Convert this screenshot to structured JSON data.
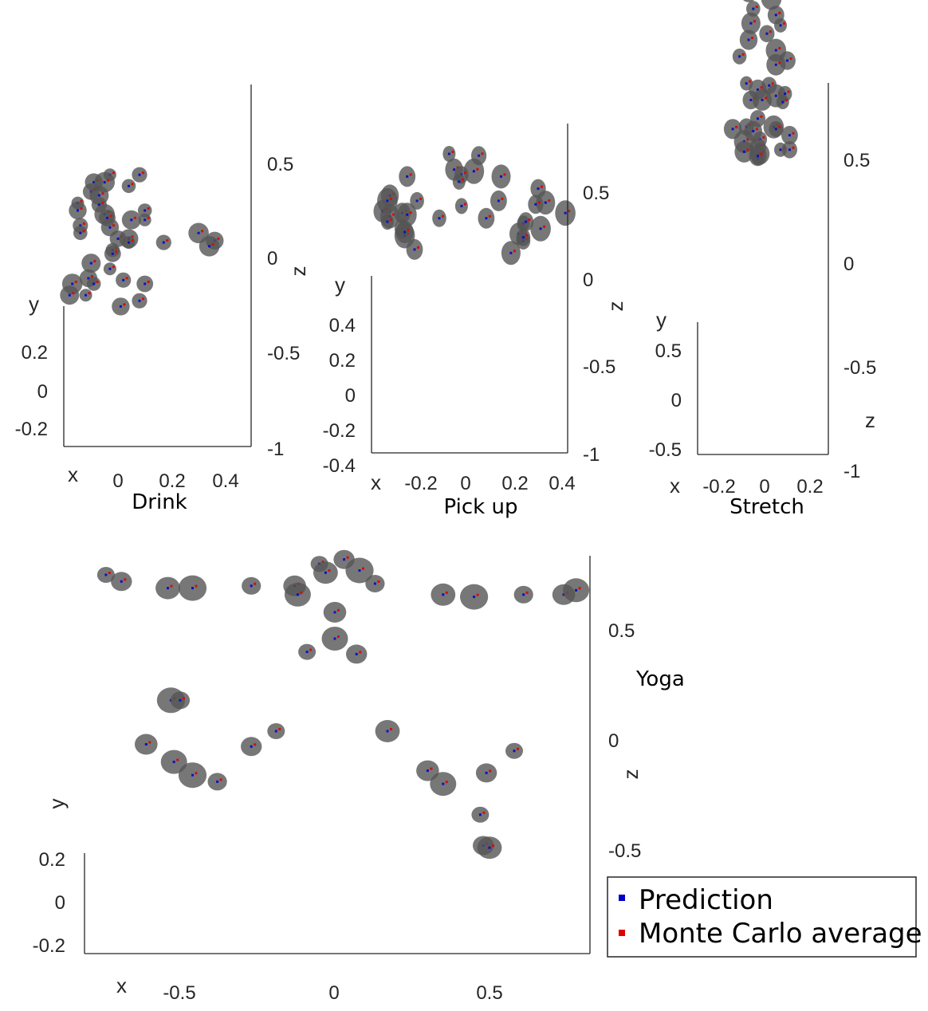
{
  "chart_data": [
    {
      "type": "scatter",
      "title": "Drink",
      "xlabel": "x",
      "ylabel": "y",
      "zlabel": "z",
      "xticks": [
        "0",
        "0.2",
        "0.4"
      ],
      "yticks": [
        "0.2",
        "0",
        "-0.2"
      ],
      "zticks": [
        "0.5",
        "0",
        "-0.5",
        "-1"
      ],
      "series": [
        {
          "name": "Prediction"
        },
        {
          "name": "Monte Carlo average"
        }
      ],
      "points": [
        [
          -0.03,
          0.44
        ],
        [
          0.08,
          0.44
        ],
        [
          -0.09,
          0.4
        ],
        [
          -0.05,
          0.4
        ],
        [
          0.04,
          0.38
        ],
        [
          -0.1,
          0.35
        ],
        [
          -0.07,
          0.33
        ],
        [
          -0.15,
          0.29
        ],
        [
          -0.07,
          0.28
        ],
        [
          -0.15,
          0.25
        ],
        [
          -0.05,
          0.23
        ],
        [
          0.1,
          0.25
        ],
        [
          -0.04,
          0.21
        ],
        [
          0.05,
          0.2
        ],
        [
          0.1,
          0.2
        ],
        [
          -0.14,
          0.17
        ],
        [
          -0.03,
          0.16
        ],
        [
          0.3,
          0.13
        ],
        [
          -0.14,
          0.13
        ],
        [
          0.0,
          0.1
        ],
        [
          0.04,
          0.1
        ],
        [
          0.04,
          0.08
        ],
        [
          0.17,
          0.08
        ],
        [
          0.36,
          0.09
        ],
        [
          0.34,
          0.06
        ],
        [
          -0.02,
          0.04
        ],
        [
          -0.02,
          0.02
        ],
        [
          -0.1,
          -0.03
        ],
        [
          -0.03,
          -0.06
        ],
        [
          0.02,
          -0.12
        ],
        [
          -0.11,
          -0.11
        ],
        [
          -0.17,
          -0.14
        ],
        [
          -0.09,
          -0.14
        ],
        [
          0.1,
          -0.14
        ],
        [
          -0.18,
          -0.2
        ],
        [
          -0.12,
          -0.2
        ],
        [
          0.08,
          -0.23
        ],
        [
          0.01,
          -0.26
        ]
      ]
    },
    {
      "type": "scatter",
      "title": "Pick up",
      "xlabel": "x",
      "ylabel": "y",
      "zlabel": "z",
      "xticks": [
        "-0.2",
        "0",
        "0.2",
        "0.4"
      ],
      "yticks": [
        "0.4",
        "0.2",
        "0",
        "-0.2",
        "-0.4"
      ],
      "zticks": [
        "0.5",
        "0",
        "-0.5",
        "-1"
      ],
      "series": [
        {
          "name": "Prediction"
        },
        {
          "name": "Monte Carlo average"
        }
      ],
      "points": [
        [
          -0.06,
          0.72
        ],
        [
          0.06,
          0.71
        ],
        [
          -0.04,
          0.63
        ],
        [
          0.04,
          0.62
        ],
        [
          -0.01,
          0.6
        ],
        [
          -0.23,
          0.59
        ],
        [
          0.15,
          0.59
        ],
        [
          -0.02,
          0.56
        ],
        [
          0.3,
          0.52
        ],
        [
          -0.3,
          0.48
        ],
        [
          -0.31,
          0.45
        ],
        [
          -0.19,
          0.45
        ],
        [
          0.14,
          0.45
        ],
        [
          0.33,
          0.44
        ],
        [
          -0.01,
          0.42
        ],
        [
          0.29,
          0.43
        ],
        [
          -0.33,
          0.39
        ],
        [
          0.41,
          0.38
        ],
        [
          -0.1,
          0.35
        ],
        [
          0.09,
          0.35
        ],
        [
          -0.3,
          0.36
        ],
        [
          0.24,
          0.32
        ],
        [
          -0.25,
          0.29
        ],
        [
          0.22,
          0.26
        ],
        [
          -0.24,
          0.25
        ],
        [
          0.24,
          0.22
        ],
        [
          -0.25,
          0.38
        ],
        [
          -0.23,
          0.37
        ],
        [
          -0.31,
          0.33
        ],
        [
          0.25,
          0.33
        ],
        [
          -0.24,
          0.27
        ],
        [
          0.31,
          0.29
        ],
        [
          0.24,
          0.24
        ],
        [
          -0.2,
          0.17
        ],
        [
          0.19,
          0.15
        ]
      ]
    },
    {
      "type": "scatter",
      "title": "Stretch",
      "xlabel": "x",
      "ylabel": "y",
      "zlabel": "z",
      "xticks": [
        "-0.2",
        "0",
        "0.2"
      ],
      "yticks": [
        "0.5",
        "0",
        "-0.5"
      ],
      "zticks": [
        "0.5",
        "0",
        "-0.5",
        "-1"
      ],
      "series": [
        {
          "name": "Prediction"
        },
        {
          "name": "Monte Carlo average"
        }
      ],
      "points": [
        [
          -0.12,
          1.28
        ],
        [
          0.02,
          1.26
        ],
        [
          -0.07,
          1.23
        ],
        [
          0.03,
          1.2
        ],
        [
          -0.05,
          1.15
        ],
        [
          0.05,
          1.12
        ],
        [
          -0.06,
          1.08
        ],
        [
          0.07,
          1.07
        ],
        [
          0.01,
          1.03
        ],
        [
          -0.07,
          1.0
        ],
        [
          0.05,
          0.95
        ],
        [
          -0.11,
          0.92
        ],
        [
          0.1,
          0.9
        ],
        [
          0.05,
          0.88
        ],
        [
          -0.08,
          0.79
        ],
        [
          0.02,
          0.78
        ],
        [
          -0.03,
          0.76
        ],
        [
          0.05,
          0.73
        ],
        [
          0.09,
          0.74
        ],
        [
          -0.06,
          0.71
        ],
        [
          -0.01,
          0.71
        ],
        [
          0.08,
          0.7
        ],
        [
          -0.03,
          0.62
        ],
        [
          -0.14,
          0.57
        ],
        [
          -0.09,
          0.51
        ],
        [
          -0.02,
          0.52
        ],
        [
          -0.03,
          0.48
        ],
        [
          -0.02,
          0.45
        ],
        [
          -0.03,
          0.43
        ],
        [
          -0.08,
          0.58
        ],
        [
          -0.05,
          0.56
        ],
        [
          0.04,
          0.58
        ],
        [
          0.05,
          0.57
        ],
        [
          0.11,
          0.54
        ],
        [
          -0.09,
          0.46
        ],
        [
          0.07,
          0.47
        ],
        [
          0.11,
          0.47
        ],
        [
          -0.03,
          0.44
        ]
      ]
    },
    {
      "type": "scatter",
      "title": "Yoga",
      "xlabel": "x",
      "ylabel": "y",
      "zlabel": "z",
      "xticks": [
        "-0.5",
        "0",
        "0.5"
      ],
      "yticks": [
        "0.2",
        "0",
        "-0.2"
      ],
      "zticks": [
        "0.5",
        "0",
        "-0.5"
      ],
      "series": [
        {
          "name": "Prediction"
        },
        {
          "name": "Monte Carlo average"
        }
      ],
      "points": [
        [
          -0.74,
          0.75
        ],
        [
          -0.69,
          0.72
        ],
        [
          -0.54,
          0.69
        ],
        [
          -0.46,
          0.69
        ],
        [
          -0.27,
          0.7
        ],
        [
          -0.13,
          0.7
        ],
        [
          -0.12,
          0.66
        ],
        [
          -0.05,
          0.8
        ],
        [
          0.03,
          0.82
        ],
        [
          -0.03,
          0.76
        ],
        [
          0.08,
          0.77
        ],
        [
          0.13,
          0.71
        ],
        [
          0.0,
          0.58
        ],
        [
          0.0,
          0.46
        ],
        [
          -0.09,
          0.4
        ],
        [
          0.07,
          0.39
        ],
        [
          0.35,
          0.66
        ],
        [
          0.45,
          0.65
        ],
        [
          0.61,
          0.66
        ],
        [
          0.74,
          0.66
        ],
        [
          0.78,
          0.68
        ],
        [
          -0.19,
          0.04
        ],
        [
          -0.27,
          -0.03
        ],
        [
          0.17,
          0.04
        ],
        [
          -0.46,
          -0.16
        ],
        [
          -0.38,
          -0.19
        ],
        [
          0.3,
          -0.14
        ],
        [
          0.35,
          -0.2
        ],
        [
          0.47,
          -0.34
        ],
        [
          0.48,
          -0.48
        ],
        [
          0.5,
          -0.49
        ],
        [
          -0.53,
          0.18
        ],
        [
          -0.5,
          0.18
        ],
        [
          -0.61,
          -0.02
        ],
        [
          -0.52,
          -0.1
        ],
        [
          0.58,
          -0.05
        ],
        [
          0.49,
          -0.15
        ]
      ]
    }
  ],
  "legend": {
    "items": [
      {
        "label": "Prediction",
        "color": "#0000c8"
      },
      {
        "label": "Monte Carlo average",
        "color": "#e00000"
      }
    ]
  }
}
